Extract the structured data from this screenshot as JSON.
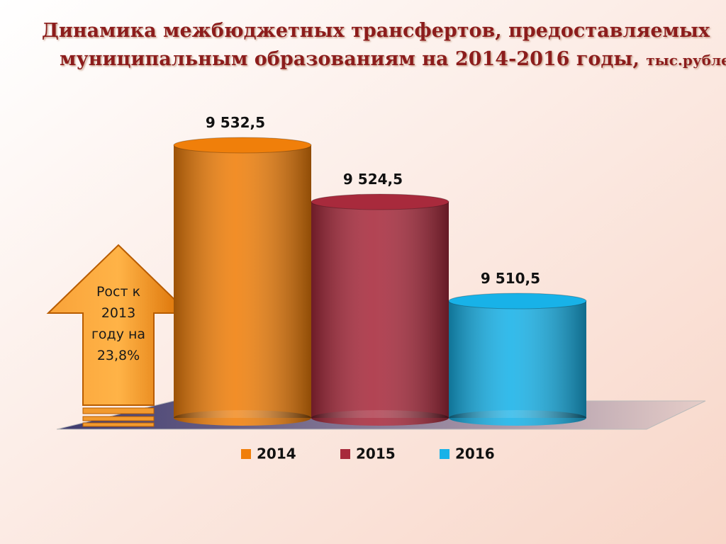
{
  "chart_data": {
    "type": "bar",
    "title": [
      "Динамика межбюджетных трансфертов, предоставляемых",
      "муниципальным образованиям на 2014-2016 годы,"
    ],
    "unit": "тыс.рублей",
    "categories": [
      null
    ],
    "series": [
      {
        "name": "2014",
        "color": "#f07f0a",
        "values": [
          9532.5
        ],
        "value_labels": [
          "9 532,5"
        ]
      },
      {
        "name": "2015",
        "color": "#a82a3c",
        "values": [
          9524.5
        ],
        "value_labels": [
          "9 524,5"
        ]
      },
      {
        "name": "2016",
        "color": "#18b2e8",
        "values": [
          9510.5
        ],
        "value_labels": [
          "9 510,5"
        ]
      }
    ],
    "ylim": [
      9494,
      9535
    ],
    "annotation": [
      "Рост к",
      "2013",
      "году на",
      "23,8%"
    ]
  }
}
